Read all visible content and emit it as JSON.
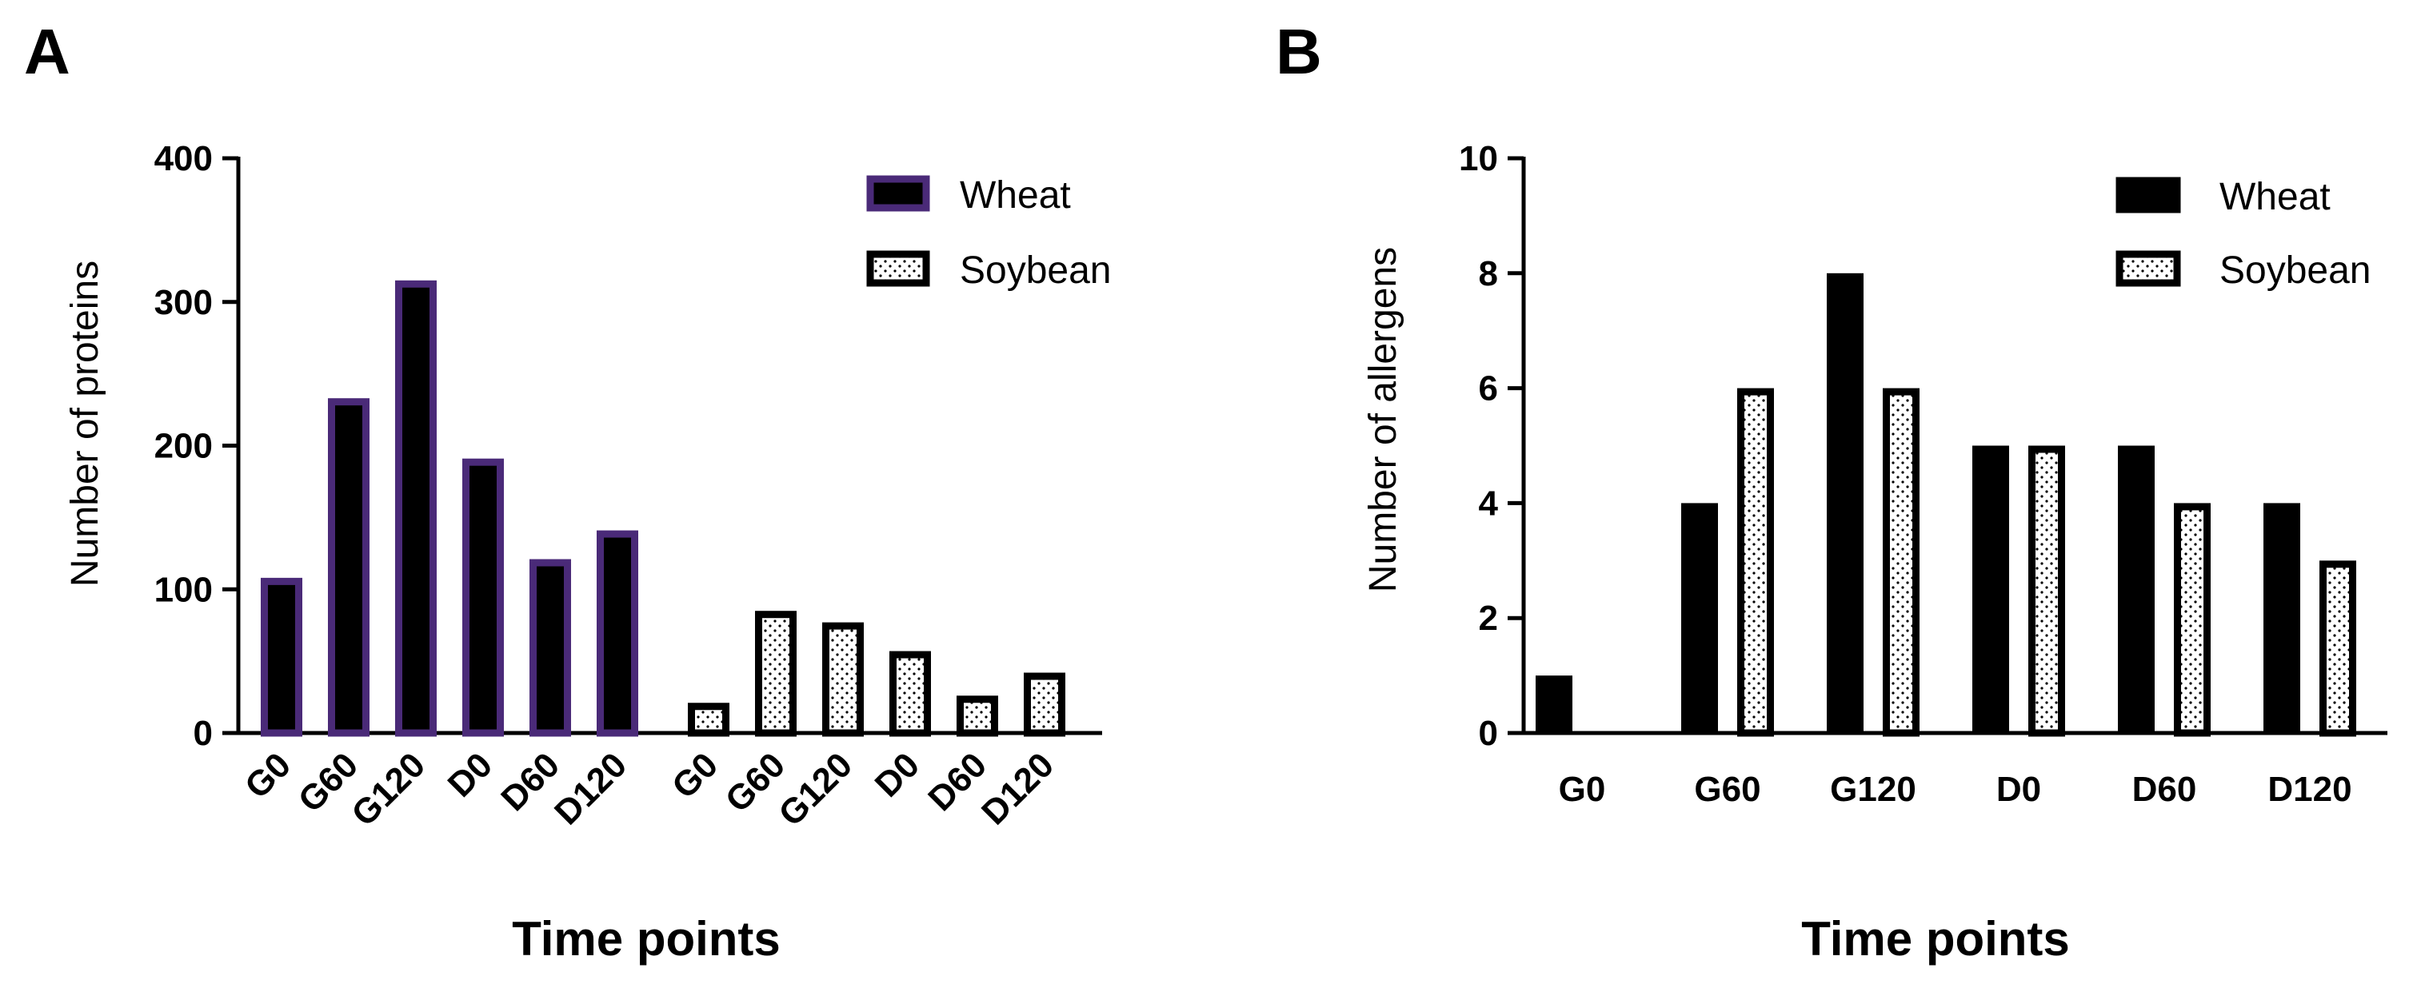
{
  "panel_labels": [
    "A",
    "B"
  ],
  "colors": {
    "wheat_fill": "#000000",
    "wheat_outline_a": "#4a2a78",
    "soybean_fill": "#ffffff",
    "outline": "#000000"
  },
  "chart_data": [
    {
      "type": "bar",
      "panel": "A",
      "ylabel": "Number of proteins",
      "xlabel": "Time points",
      "ylim": [
        0,
        400
      ],
      "yticks": [
        0,
        100,
        200,
        300,
        400
      ],
      "legend_position": "top-right",
      "series": [
        {
          "name": "Wheat",
          "pattern": "solid",
          "categories": [
            "G0",
            "G60",
            "G120",
            "D0",
            "D60",
            "D120"
          ],
          "values": [
            108,
            233,
            315,
            191,
            121,
            141
          ]
        },
        {
          "name": "Soybean",
          "pattern": "dotted",
          "categories": [
            "G0",
            "G60",
            "G120",
            "D0",
            "D60",
            "D120"
          ],
          "values": [
            21,
            85,
            77,
            57,
            26,
            42
          ]
        }
      ]
    },
    {
      "type": "bar",
      "panel": "B",
      "ylabel": "Number of allergens",
      "xlabel": "Time points",
      "ylim": [
        0,
        10
      ],
      "yticks": [
        0,
        2,
        4,
        6,
        8,
        10
      ],
      "legend_position": "top-right",
      "categories": [
        "G0",
        "G60",
        "G120",
        "D0",
        "D60",
        "D120"
      ],
      "series": [
        {
          "name": "Wheat",
          "pattern": "solid",
          "values": [
            1,
            4,
            8,
            5,
            5,
            4
          ]
        },
        {
          "name": "Soybean",
          "pattern": "dotted",
          "values": [
            0,
            6,
            6,
            5,
            4,
            3
          ]
        }
      ]
    }
  ]
}
